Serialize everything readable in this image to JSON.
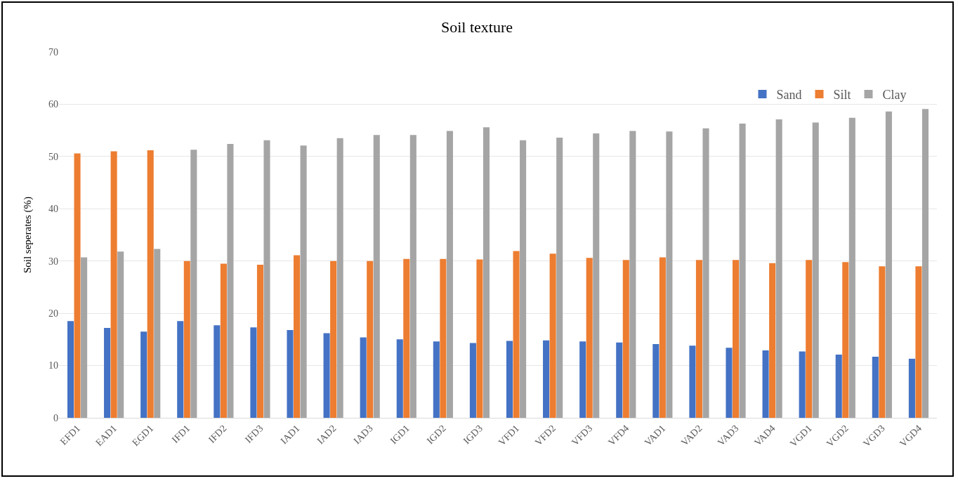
{
  "chart_data": {
    "type": "bar",
    "title": "Soil texture",
    "ylabel": "Soil seperates (%)",
    "categories": [
      "EFD1",
      "EAD1",
      "EGD1",
      "IFD1",
      "IFD2",
      "IFD3",
      "IAD1",
      "IAD2",
      "IAD3",
      "IGD1",
      "IGD2",
      "IGD3",
      "VFD1",
      "VFD2",
      "VFD3",
      "VFD4",
      "VAD1",
      "VAD2",
      "VAD3",
      "VAD4",
      "VGD1",
      "VGD2",
      "VGD3",
      "VGD4"
    ],
    "series": [
      {
        "name": "Sand",
        "color": "#4472c4",
        "values": [
          18.5,
          17.2,
          16.5,
          18.5,
          17.7,
          17.3,
          16.8,
          16.2,
          15.4,
          15.0,
          14.6,
          14.3,
          14.7,
          14.8,
          14.6,
          14.4,
          14.1,
          13.8,
          13.4,
          12.9,
          12.7,
          12.1,
          11.7,
          11.3
        ]
      },
      {
        "name": "Silt",
        "color": "#ed7d31",
        "values": [
          50.6,
          51.0,
          51.2,
          30.0,
          29.5,
          29.3,
          31.1,
          30.0,
          30.0,
          30.4,
          30.4,
          30.3,
          31.9,
          31.4,
          30.6,
          30.2,
          30.7,
          30.2,
          30.2,
          29.6,
          30.2,
          29.8,
          29.0,
          29.0
        ]
      },
      {
        "name": "Clay",
        "color": "#a5a5a5",
        "values": [
          30.7,
          31.8,
          32.3,
          51.3,
          52.4,
          53.1,
          52.1,
          53.5,
          54.1,
          54.1,
          54.9,
          55.6,
          53.1,
          53.6,
          54.4,
          54.9,
          54.8,
          55.4,
          56.3,
          57.1,
          56.5,
          57.4,
          58.6,
          59.1
        ]
      }
    ],
    "ylim": [
      0,
      70
    ],
    "yticks": [
      0,
      10,
      20,
      30,
      40,
      50,
      60,
      70
    ],
    "grid": "y",
    "legend": "top right"
  }
}
